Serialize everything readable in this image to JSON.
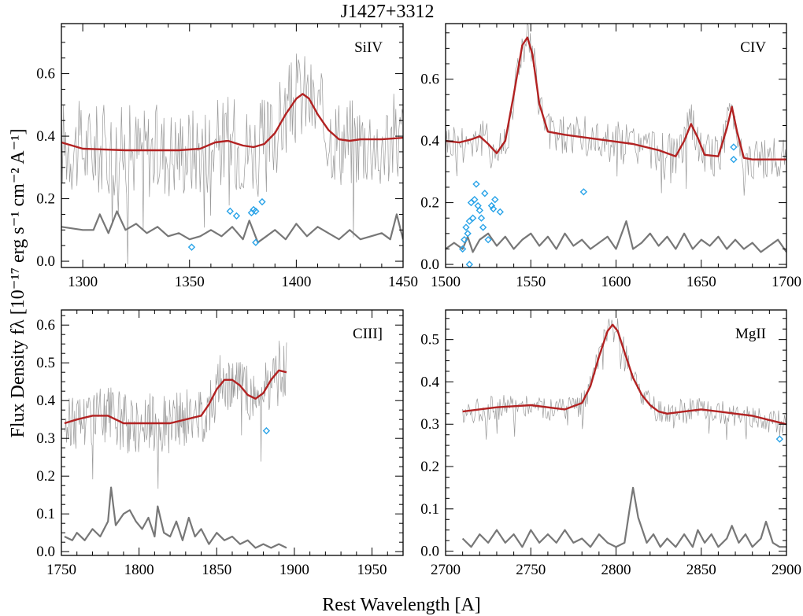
{
  "figure_title": "J1427+3312",
  "xlabel": "Rest Wavelength [A]",
  "ylabel": "Flux Density fλ [10⁻¹⁷ erg s⁻¹ cm⁻² A⁻¹]",
  "colors": {
    "spectrum": "#9a9a9a",
    "model": "#b22222",
    "error": "#777777",
    "masked": "#29a3e8"
  },
  "chart_data": [
    {
      "type": "line",
      "panel_label": "SiIV",
      "xlim": [
        1290,
        1450
      ],
      "ylim": [
        -0.02,
        0.76
      ],
      "xticks": [
        1300,
        1350,
        1400,
        1450
      ],
      "yticks": [
        0.0,
        0.2,
        0.4,
        0.6
      ],
      "series": [
        {
          "role": "model",
          "x": [
            1290,
            1300,
            1320,
            1345,
            1355,
            1362,
            1368,
            1375,
            1380,
            1385,
            1390,
            1395,
            1400,
            1403,
            1406,
            1410,
            1415,
            1420,
            1425,
            1430,
            1440,
            1450
          ],
          "y": [
            0.38,
            0.36,
            0.355,
            0.355,
            0.36,
            0.38,
            0.385,
            0.37,
            0.365,
            0.375,
            0.41,
            0.47,
            0.52,
            0.535,
            0.52,
            0.47,
            0.42,
            0.39,
            0.385,
            0.39,
            0.39,
            0.395
          ]
        },
        {
          "role": "error",
          "x": [
            1290,
            1300,
            1305,
            1308,
            1312,
            1316,
            1320,
            1325,
            1330,
            1335,
            1340,
            1345,
            1350,
            1355,
            1360,
            1365,
            1370,
            1375,
            1378,
            1382,
            1386,
            1390,
            1395,
            1400,
            1405,
            1410,
            1415,
            1420,
            1425,
            1430,
            1435,
            1440,
            1444,
            1447,
            1450
          ],
          "y": [
            0.11,
            0.1,
            0.1,
            0.15,
            0.09,
            0.16,
            0.1,
            0.12,
            0.09,
            0.11,
            0.08,
            0.09,
            0.07,
            0.08,
            0.1,
            0.08,
            0.11,
            0.07,
            0.13,
            0.06,
            0.08,
            0.1,
            0.07,
            0.12,
            0.08,
            0.11,
            0.09,
            0.07,
            0.1,
            0.07,
            0.08,
            0.09,
            0.07,
            0.15,
            0.07
          ]
        },
        {
          "role": "masked",
          "points": [
            [
              1351,
              0.045
            ],
            [
              1369,
              0.16
            ],
            [
              1372,
              0.145
            ],
            [
              1379,
              0.155
            ],
            [
              1380,
              0.165
            ],
            [
              1381,
              0.16
            ],
            [
              1381,
              0.06
            ],
            [
              1384,
              0.19
            ]
          ]
        }
      ]
    },
    {
      "type": "line",
      "panel_label": "CIV",
      "xlim": [
        1500,
        1700
      ],
      "ylim": [
        -0.01,
        0.78
      ],
      "xticks": [
        1500,
        1550,
        1600,
        1650,
        1700
      ],
      "yticks": [
        0.0,
        0.2,
        0.4,
        0.6
      ],
      "series": [
        {
          "role": "model",
          "x": [
            1500,
            1508,
            1515,
            1520,
            1525,
            1530,
            1535,
            1540,
            1545,
            1548,
            1551,
            1555,
            1560,
            1570,
            1590,
            1610,
            1625,
            1635,
            1640,
            1644,
            1648,
            1652,
            1660,
            1665,
            1668,
            1671,
            1675,
            1680,
            1690,
            1700
          ],
          "y": [
            0.4,
            0.395,
            0.405,
            0.415,
            0.39,
            0.36,
            0.4,
            0.55,
            0.71,
            0.735,
            0.68,
            0.52,
            0.43,
            0.42,
            0.405,
            0.39,
            0.37,
            0.35,
            0.4,
            0.455,
            0.41,
            0.355,
            0.35,
            0.44,
            0.51,
            0.43,
            0.345,
            0.34,
            0.34,
            0.34
          ]
        },
        {
          "role": "error",
          "x": [
            1500,
            1505,
            1510,
            1513,
            1516,
            1520,
            1525,
            1530,
            1535,
            1540,
            1545,
            1550,
            1555,
            1560,
            1565,
            1570,
            1575,
            1580,
            1585,
            1590,
            1595,
            1600,
            1606,
            1610,
            1615,
            1620,
            1625,
            1630,
            1635,
            1640,
            1645,
            1650,
            1655,
            1660,
            1665,
            1670,
            1675,
            1680,
            1685,
            1690,
            1695,
            1700
          ],
          "y": [
            0.05,
            0.07,
            0.05,
            0.09,
            0.04,
            0.08,
            0.1,
            0.06,
            0.09,
            0.05,
            0.08,
            0.1,
            0.06,
            0.09,
            0.05,
            0.1,
            0.06,
            0.08,
            0.05,
            0.07,
            0.09,
            0.05,
            0.14,
            0.05,
            0.07,
            0.1,
            0.06,
            0.09,
            0.05,
            0.1,
            0.05,
            0.08,
            0.06,
            0.09,
            0.05,
            0.08,
            0.05,
            0.07,
            0.04,
            0.06,
            0.08,
            0.04
          ]
        },
        {
          "role": "masked",
          "points": [
            [
              1510,
              0.05
            ],
            [
              1511,
              0.08
            ],
            [
              1512,
              0.12
            ],
            [
              1513,
              0.1
            ],
            [
              1514,
              0.14
            ],
            [
              1514,
              0.0
            ],
            [
              1515,
              0.2
            ],
            [
              1516,
              0.15
            ],
            [
              1517,
              0.21
            ],
            [
              1518,
              0.26
            ],
            [
              1519,
              0.19
            ],
            [
              1520,
              0.175
            ],
            [
              1521,
              0.15
            ],
            [
              1522,
              0.12
            ],
            [
              1523,
              0.23
            ],
            [
              1525,
              0.08
            ],
            [
              1527,
              0.19
            ],
            [
              1528,
              0.18
            ],
            [
              1529,
              0.21
            ],
            [
              1532,
              0.17
            ],
            [
              1581,
              0.235
            ],
            [
              1669,
              0.38
            ],
            [
              1669,
              0.34
            ]
          ]
        }
      ]
    },
    {
      "type": "line",
      "panel_label": "CIII]",
      "xlim": [
        1750,
        1970
      ],
      "ylim": [
        -0.01,
        0.64
      ],
      "xticks": [
        1750,
        1800,
        1850,
        1900,
        1950
      ],
      "yticks": [
        0.0,
        0.1,
        0.2,
        0.3,
        0.4,
        0.5,
        0.6
      ],
      "series": [
        {
          "role": "model",
          "x": [
            1752,
            1760,
            1770,
            1780,
            1790,
            1800,
            1810,
            1820,
            1830,
            1840,
            1845,
            1850,
            1855,
            1860,
            1865,
            1870,
            1875,
            1880,
            1885,
            1890,
            1895
          ],
          "y": [
            0.34,
            0.35,
            0.36,
            0.36,
            0.34,
            0.34,
            0.34,
            0.34,
            0.35,
            0.36,
            0.39,
            0.43,
            0.455,
            0.455,
            0.44,
            0.415,
            0.405,
            0.42,
            0.455,
            0.48,
            0.475
          ]
        },
        {
          "role": "error",
          "x": [
            1752,
            1757,
            1760,
            1765,
            1770,
            1775,
            1780,
            1782,
            1785,
            1790,
            1794,
            1798,
            1802,
            1806,
            1810,
            1812,
            1816,
            1820,
            1824,
            1828,
            1832,
            1836,
            1840,
            1845,
            1850,
            1855,
            1860,
            1865,
            1870,
            1875,
            1880,
            1885,
            1890,
            1895
          ],
          "y": [
            0.04,
            0.03,
            0.05,
            0.03,
            0.06,
            0.04,
            0.08,
            0.17,
            0.07,
            0.1,
            0.11,
            0.08,
            0.06,
            0.09,
            0.04,
            0.12,
            0.05,
            0.04,
            0.08,
            0.03,
            0.09,
            0.04,
            0.06,
            0.02,
            0.05,
            0.03,
            0.04,
            0.02,
            0.03,
            0.01,
            0.02,
            0.01,
            0.02,
            0.01
          ]
        },
        {
          "role": "masked",
          "points": [
            [
              1882,
              0.32
            ]
          ]
        }
      ]
    },
    {
      "type": "line",
      "panel_label": "MgII",
      "xlim": [
        2700,
        2900
      ],
      "ylim": [
        -0.01,
        0.57
      ],
      "xticks": [
        2700,
        2750,
        2800,
        2850,
        2900
      ],
      "yticks": [
        0.0,
        0.1,
        0.2,
        0.3,
        0.4,
        0.5
      ],
      "series": [
        {
          "role": "model",
          "x": [
            2710,
            2730,
            2750,
            2770,
            2780,
            2785,
            2790,
            2795,
            2798,
            2801,
            2805,
            2810,
            2815,
            2820,
            2825,
            2830,
            2840,
            2850,
            2860,
            2870,
            2880,
            2890,
            2900
          ],
          "y": [
            0.33,
            0.34,
            0.345,
            0.335,
            0.35,
            0.39,
            0.46,
            0.52,
            0.535,
            0.52,
            0.47,
            0.41,
            0.37,
            0.345,
            0.33,
            0.325,
            0.33,
            0.335,
            0.33,
            0.325,
            0.32,
            0.31,
            0.3
          ]
        },
        {
          "role": "error",
          "x": [
            2710,
            2715,
            2720,
            2725,
            2730,
            2735,
            2740,
            2745,
            2750,
            2755,
            2760,
            2765,
            2770,
            2775,
            2780,
            2785,
            2790,
            2795,
            2800,
            2805,
            2808,
            2810,
            2813,
            2818,
            2822,
            2826,
            2830,
            2835,
            2840,
            2845,
            2848,
            2852,
            2856,
            2860,
            2865,
            2868,
            2872,
            2876,
            2880,
            2885,
            2888,
            2892,
            2896,
            2900
          ],
          "y": [
            0.03,
            0.01,
            0.04,
            0.02,
            0.05,
            0.02,
            0.04,
            0.01,
            0.05,
            0.02,
            0.04,
            0.02,
            0.05,
            0.02,
            0.03,
            0.01,
            0.04,
            0.02,
            0.01,
            0.02,
            0.1,
            0.15,
            0.08,
            0.02,
            0.04,
            0.01,
            0.03,
            0.01,
            0.04,
            0.01,
            0.05,
            0.02,
            0.04,
            0.01,
            0.03,
            0.06,
            0.02,
            0.04,
            0.01,
            0.03,
            0.07,
            0.02,
            0.01,
            0.01
          ]
        },
        {
          "role": "masked",
          "points": [
            [
              2896,
              0.265
            ]
          ]
        }
      ]
    }
  ]
}
